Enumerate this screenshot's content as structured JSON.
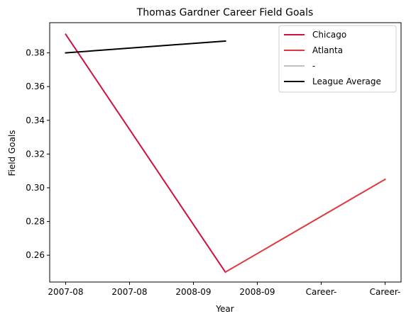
{
  "chart_data": {
    "type": "line",
    "title": "Thomas Gardner  Career Field Goals",
    "xlabel": "Year",
    "ylabel": "Field Goals",
    "x_ticks": [
      {
        "pos": 0.0,
        "label": "2007-08"
      },
      {
        "pos": 0.2,
        "label": "2007-08"
      },
      {
        "pos": 0.4,
        "label": "2008-09"
      },
      {
        "pos": 0.6,
        "label": "2008-09"
      },
      {
        "pos": 0.8,
        "label": "Career-"
      },
      {
        "pos": 1.0,
        "label": "Career-"
      }
    ],
    "x_range": [
      -0.05,
      1.05
    ],
    "y_ticks": [
      {
        "value": 0.26,
        "label": "0.26"
      },
      {
        "value": 0.28,
        "label": "0.28"
      },
      {
        "value": 0.3,
        "label": "0.30"
      },
      {
        "value": 0.32,
        "label": "0.32"
      },
      {
        "value": 0.34,
        "label": "0.34"
      },
      {
        "value": 0.36,
        "label": "0.36"
      },
      {
        "value": 0.38,
        "label": "0.38"
      }
    ],
    "ylim": [
      0.2441,
      0.3979
    ],
    "grid": false,
    "legend_position": "top-right",
    "series": [
      {
        "name": "Chicago",
        "color": "#CE1141",
        "points": [
          [
            0.0,
            0.391
          ],
          [
            0.5,
            0.25
          ]
        ]
      },
      {
        "name": "Atlanta",
        "color": "#E03A3E",
        "points": [
          [
            0.5,
            0.25
          ],
          [
            1.0,
            0.305
          ]
        ]
      },
      {
        "name": "-",
        "color": "#C0C0C0",
        "points": []
      },
      {
        "name": "League Average",
        "color": "#000000",
        "points": [
          [
            0.0,
            0.38
          ],
          [
            0.5,
            0.387
          ]
        ]
      }
    ]
  }
}
